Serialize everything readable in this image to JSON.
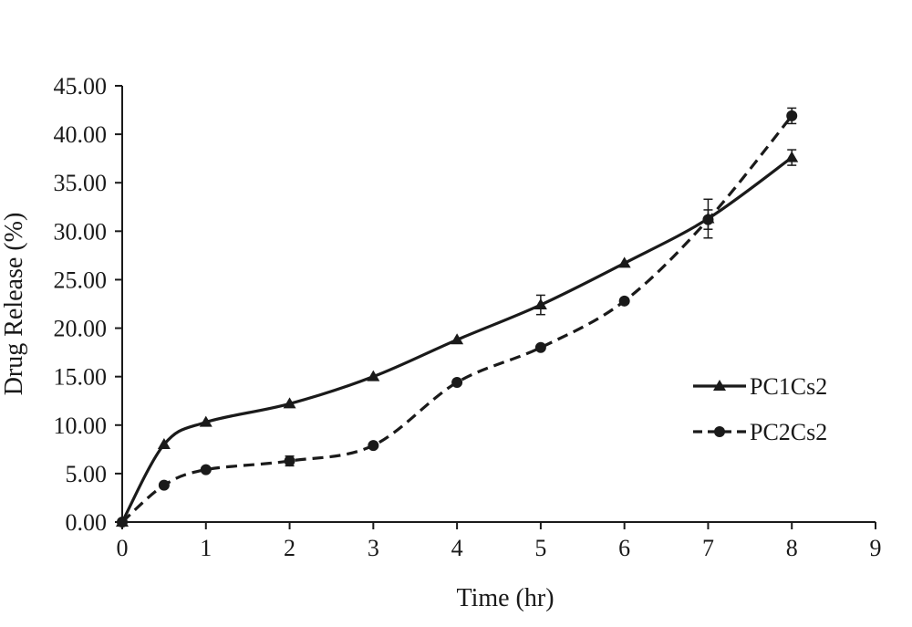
{
  "chart_data": {
    "type": "line",
    "xlabel": "Time (hr)",
    "ylabel": "Drug Release (%)",
    "xlim": [
      0,
      9
    ],
    "ylim": [
      0,
      45
    ],
    "x_ticks": [
      "0",
      "1",
      "2",
      "3",
      "4",
      "5",
      "6",
      "7",
      "8",
      "9"
    ],
    "y_ticks": [
      "0.00",
      "5.00",
      "10.00",
      "15.00",
      "20.00",
      "25.00",
      "30.00",
      "35.00",
      "40.00",
      "45.00"
    ],
    "grid": false,
    "legend_position": "right",
    "series": [
      {
        "name": "PC1Cs2",
        "marker": "triangle",
        "line_style": "solid",
        "color": "#1a1a1a",
        "x": [
          0,
          0.5,
          1,
          2,
          3,
          4,
          5,
          6,
          7,
          8
        ],
        "y": [
          0,
          8.0,
          10.3,
          12.2,
          15.0,
          18.8,
          22.4,
          26.7,
          31.3,
          37.6
        ],
        "error": [
          0,
          0,
          0,
          0,
          0,
          0,
          1.0,
          0,
          2.0,
          0.8
        ]
      },
      {
        "name": "PC2Cs2",
        "marker": "circle",
        "line_style": "dashed",
        "color": "#1a1a1a",
        "x": [
          0,
          0.5,
          1,
          2,
          3,
          4,
          5,
          6,
          7,
          8
        ],
        "y": [
          0,
          3.8,
          5.4,
          6.3,
          7.9,
          14.4,
          18.0,
          22.8,
          31.2,
          41.9
        ],
        "error": [
          0,
          0,
          0,
          0.5,
          0,
          0,
          0,
          0,
          1.0,
          0.8
        ]
      }
    ]
  }
}
